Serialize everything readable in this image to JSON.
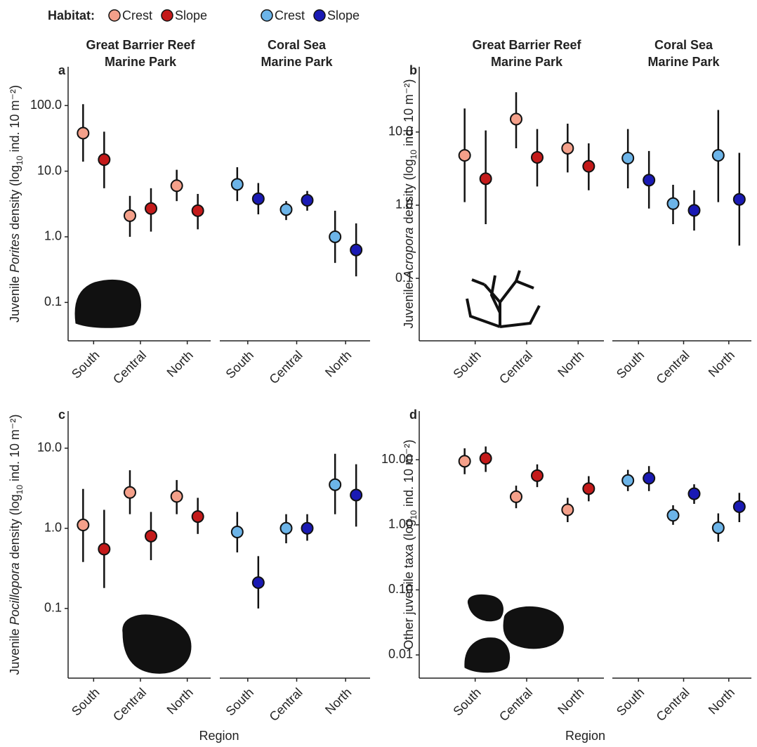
{
  "legend": {
    "title": "Habitat:"
  },
  "chart_data": [
    {
      "type": "pointrange",
      "panel_label": "a",
      "log_y": true,
      "ylabel": [
        "Juvenile ",
        {
          "text": "Porites",
          "style": "italic"
        },
        " density (log",
        {
          "text": "10",
          "style": "sub"
        },
        " ind. 10 m⁻²)"
      ],
      "ylim": [
        0.026,
        390
      ],
      "yticks": [
        0.1,
        {
          "value": 1,
          "label": "1.0"
        },
        {
          "value": 10,
          "label": "10.0"
        },
        {
          "value": 100,
          "label": "100.0"
        }
      ],
      "facets": [
        {
          "title": [
            "Great Barrier Reef",
            "Marine Park"
          ],
          "categories": [
            "South",
            "Central",
            "North"
          ],
          "series": [
            {
              "name": "Crest",
              "color": "#f4a08a",
              "values": [
                38,
                2.1,
                6
              ],
              "lower": [
                14,
                1.0,
                3.5
              ],
              "upper": [
                105,
                4.2,
                10.5
              ]
            },
            {
              "name": "Slope",
              "color": "#c41a1a",
              "values": [
                15,
                2.7,
                2.5
              ],
              "lower": [
                5.5,
                1.2,
                1.3
              ],
              "upper": [
                40,
                5.5,
                4.5
              ]
            }
          ]
        },
        {
          "title": [
            "Coral Sea",
            "Marine Park"
          ],
          "categories": [
            "South",
            "Central",
            "North"
          ],
          "series": [
            {
              "name": "Crest",
              "color": "#6cb4e8",
              "values": [
                6.3,
                2.6,
                1.0
              ],
              "lower": [
                3.5,
                1.8,
                0.4
              ],
              "upper": [
                11.5,
                3.5,
                2.5
              ]
            },
            {
              "name": "Slope",
              "color": "#1a1ab4",
              "values": [
                3.8,
                3.6,
                0.63
              ],
              "lower": [
                2.2,
                2.5,
                0.25
              ],
              "upper": [
                6.6,
                5,
                1.6
              ]
            }
          ]
        }
      ]
    },
    {
      "type": "pointrange",
      "panel_label": "b",
      "log_y": true,
      "ylabel": [
        "Juvenile ",
        {
          "text": "Acropora",
          "style": "italic"
        },
        " density (log",
        {
          "text": "10",
          "style": "sub"
        },
        " ind. 10 m⁻²)"
      ],
      "ylim": [
        0.014,
        78
      ],
      "yticks": [
        0.1,
        {
          "value": 1,
          "label": "1.0"
        },
        {
          "value": 10,
          "label": "10.0"
        }
      ],
      "facets": [
        {
          "title": [
            "Great Barrier Reef",
            "Marine Park"
          ],
          "categories": [
            "South",
            "Central",
            "North"
          ],
          "series": [
            {
              "name": "Crest",
              "color": "#f4a08a",
              "values": [
                4.8,
                15,
                6
              ],
              "lower": [
                1.1,
                6,
                2.8
              ],
              "upper": [
                21,
                35,
                13
              ]
            },
            {
              "name": "Slope",
              "color": "#c41a1a",
              "values": [
                2.3,
                4.5,
                3.4
              ],
              "lower": [
                0.55,
                1.8,
                1.6
              ],
              "upper": [
                10.5,
                11,
                7
              ]
            }
          ]
        },
        {
          "title": [
            "Coral Sea",
            "Marine Park"
          ],
          "categories": [
            "South",
            "Central",
            "North"
          ],
          "series": [
            {
              "name": "Crest",
              "color": "#6cb4e8",
              "values": [
                4.4,
                1.05,
                4.8
              ],
              "lower": [
                1.7,
                0.55,
                1.1
              ],
              "upper": [
                11,
                1.9,
                20
              ]
            },
            {
              "name": "Slope",
              "color": "#1a1ab4",
              "values": [
                2.2,
                0.85,
                1.2
              ],
              "lower": [
                0.9,
                0.45,
                0.28
              ],
              "upper": [
                5.5,
                1.6,
                5.2
              ]
            }
          ]
        }
      ]
    },
    {
      "type": "pointrange",
      "panel_label": "c",
      "log_y": true,
      "x_label": "Region",
      "ylabel": [
        "Juvenile ",
        {
          "text": "Pocillopora",
          "style": "italic"
        },
        " density (log",
        {
          "text": "10",
          "style": "sub"
        },
        " ind. 10 m⁻²)"
      ],
      "ylim": [
        0.0135,
        29
      ],
      "yticks": [
        0.1,
        {
          "value": 1,
          "label": "1.0"
        },
        {
          "value": 10,
          "label": "10.0"
        }
      ],
      "facets": [
        {
          "categories": [
            "South",
            "Central",
            "North"
          ],
          "series": [
            {
              "name": "Crest",
              "color": "#f4a08a",
              "values": [
                1.1,
                2.8,
                2.5
              ],
              "lower": [
                0.38,
                1.5,
                1.5
              ],
              "upper": [
                3.1,
                5.3,
                4
              ]
            },
            {
              "name": "Slope",
              "color": "#c41a1a",
              "values": [
                0.55,
                0.8,
                1.4
              ],
              "lower": [
                0.18,
                0.4,
                0.85
              ],
              "upper": [
                1.7,
                1.6,
                2.4
              ]
            }
          ]
        },
        {
          "categories": [
            "South",
            "Central",
            "North"
          ],
          "series": [
            {
              "name": "Crest",
              "color": "#6cb4e8",
              "values": [
                0.9,
                1.0,
                3.5
              ],
              "lower": [
                0.5,
                0.65,
                1.5
              ],
              "upper": [
                1.6,
                1.5,
                8.5
              ]
            },
            {
              "name": "Slope",
              "color": "#1a1ab4",
              "values": [
                0.21,
                1.0,
                2.6
              ],
              "lower": [
                0.1,
                0.7,
                1.05
              ],
              "upper": [
                0.45,
                1.5,
                6.3
              ]
            }
          ]
        }
      ]
    },
    {
      "type": "pointrange",
      "panel_label": "d",
      "log_y": true,
      "x_label": "Region",
      "ylabel": [
        "Other juvenile taxa (log",
        {
          "text": "10",
          "style": "sub"
        },
        " ind. 10 m⁻²)"
      ],
      "ylim": [
        0.0044,
        56
      ],
      "yticks": [
        {
          "value": 0.01,
          "label": "0.01"
        },
        {
          "value": 0.1,
          "label": "0.10"
        },
        {
          "value": 1,
          "label": "1.00"
        },
        {
          "value": 10,
          "label": "10.00"
        }
      ],
      "facets": [
        {
          "categories": [
            "South",
            "Central",
            "North"
          ],
          "series": [
            {
              "name": "Crest",
              "color": "#f4a08a",
              "values": [
                9.5,
                2.7,
                1.7
              ],
              "lower": [
                6,
                1.8,
                1.1
              ],
              "upper": [
                15,
                4,
                2.6
              ]
            },
            {
              "name": "Slope",
              "color": "#c41a1a",
              "values": [
                10.5,
                5.7,
                3.6
              ],
              "lower": [
                6.5,
                3.8,
                2.3
              ],
              "upper": [
                16,
                8.5,
                5.6
              ]
            }
          ]
        },
        {
          "categories": [
            "South",
            "Central",
            "North"
          ],
          "series": [
            {
              "name": "Crest",
              "color": "#6cb4e8",
              "values": [
                4.8,
                1.4,
                0.9
              ],
              "lower": [
                3.3,
                1.0,
                0.55
              ],
              "upper": [
                7,
                2.0,
                1.5
              ]
            },
            {
              "name": "Slope",
              "color": "#1a1ab4",
              "values": [
                5.2,
                3.0,
                1.9
              ],
              "lower": [
                3.3,
                2.1,
                1.1
              ],
              "upper": [
                8,
                4.2,
                3.1
              ]
            }
          ]
        }
      ]
    }
  ]
}
